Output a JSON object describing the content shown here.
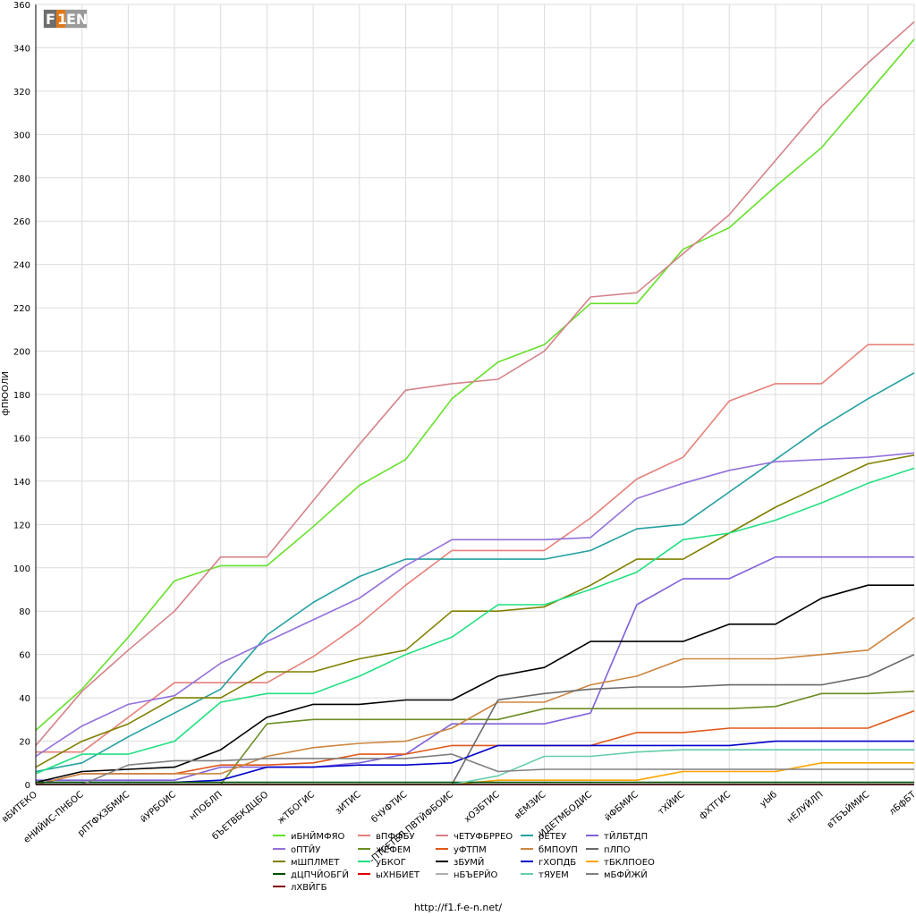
{
  "logo": {
    "text": "F1EN"
  },
  "footer": {
    "url": "http://f1.f-e-n.net/"
  },
  "chart_data": {
    "type": "line",
    "title": "",
    "xlabel": "",
    "ylabel": "фПЮОЛИ",
    "ylim": [
      0,
      360
    ],
    "ytick_step": 20,
    "grid": true,
    "legend_position": "bottom",
    "categories": [
      "вБИТЕКО",
      "еНИЙИС-ПНБОС",
      "рПТФХЗБМИС",
      "йУРБОИС",
      "нПОБЛП",
      "бЪЕТВБКДЦБО",
      "жТБОГИС",
      "зИТИС",
      "бЧУФТИС",
      "-ПТГЕТЕЛ ПВТЙФБОИС",
      "хОЗБТИС",
      "вЕМЗИС",
      "-ИДЕТМБОДИС",
      "йФБМИС",
      "тХЙИС",
      "фХТГИС",
      "уЫб",
      "нЕЛУЙЛП",
      "вТБЪЙМИС",
      "лБфБТ"
    ],
    "series": [
      {
        "name": "иБНЙМФЯО",
        "color": "#66e02a",
        "values": [
          25,
          44,
          68,
          94,
          101,
          101,
          119,
          138,
          150,
          178,
          195,
          203,
          222,
          222,
          247,
          257,
          276,
          294,
          319,
          344
        ]
      },
      {
        "name": "вПФФБУ",
        "color": "#e6807a",
        "values": [
          15,
          15,
          31,
          47,
          47,
          47,
          59,
          74,
          92,
          108,
          108,
          108,
          123,
          141,
          151,
          177,
          185,
          185,
          203,
          203
        ]
      },
      {
        "name": "чЕТУФБРРЕО",
        "color": "#d4828a",
        "values": [
          18,
          43,
          62,
          80,
          105,
          105,
          131,
          157,
          182,
          185,
          187,
          200,
          225,
          227,
          245,
          263,
          288,
          313,
          333,
          352
        ]
      },
      {
        "name": "рЕТЕУ",
        "color": "#24a0a0",
        "values": [
          6,
          10,
          22,
          33,
          44,
          69,
          84,
          96,
          104,
          104,
          104,
          104,
          108,
          118,
          120,
          135,
          150,
          165,
          178,
          190
        ]
      },
      {
        "name": "тЙЛБТДП",
        "color": "#8060d8",
        "values": [
          2,
          2,
          2,
          2,
          8,
          8,
          8,
          10,
          14,
          28,
          28,
          28,
          33,
          83,
          95,
          95,
          105,
          105,
          105,
          105
        ]
      },
      {
        "name": "оПТЙУ",
        "color": "#9370db",
        "values": [
          13,
          27,
          37,
          41,
          56,
          66,
          76,
          86,
          101,
          113,
          113,
          113,
          114,
          132,
          139,
          145,
          149,
          150,
          151,
          153
        ]
      },
      {
        "name": "жЕФЕМ",
        "color": "#6b8e23",
        "values": [
          0,
          0,
          0,
          0,
          0,
          28,
          30,
          30,
          30,
          30,
          30,
          35,
          35,
          35,
          35,
          35,
          36,
          42,
          42,
          43
        ]
      },
      {
        "name": "уФТПМ",
        "color": "#e05818",
        "values": [
          0,
          5,
          5,
          5,
          9,
          9,
          10,
          14,
          14,
          18,
          18,
          18,
          18,
          24,
          24,
          26,
          26,
          26,
          26,
          34
        ]
      },
      {
        "name": "бМПОУП",
        "color": "#cd853f",
        "values": [
          0,
          5,
          5,
          5,
          5,
          13,
          17,
          19,
          20,
          26,
          38,
          38,
          46,
          50,
          58,
          58,
          58,
          60,
          62,
          77
        ]
      },
      {
        "name": "пЛПО",
        "color": "#696969",
        "values": [
          0,
          0,
          0,
          0,
          0,
          0,
          0,
          0,
          0,
          0,
          39,
          42,
          44,
          45,
          45,
          46,
          46,
          46,
          50,
          60
        ]
      },
      {
        "name": "мШПЛМЕТ",
        "color": "#808000",
        "values": [
          8,
          20,
          28,
          40,
          40,
          52,
          52,
          58,
          62,
          80,
          80,
          82,
          92,
          104,
          104,
          116,
          128,
          138,
          148,
          152
        ]
      },
      {
        "name": "уБКОГ",
        "color": "#20e080",
        "values": [
          5,
          14,
          14,
          20,
          38,
          42,
          42,
          50,
          60,
          68,
          83,
          83,
          90,
          98,
          113,
          116,
          122,
          130,
          139,
          146
        ]
      },
      {
        "name": "зБУМЙ",
        "color": "#000000",
        "values": [
          1,
          6,
          7,
          8,
          16,
          31,
          37,
          37,
          39,
          39,
          50,
          54,
          66,
          66,
          66,
          74,
          74,
          86,
          92,
          92
        ]
      },
      {
        "name": "гХОПДБ",
        "color": "#0000cd",
        "values": [
          1,
          1,
          1,
          1,
          2,
          8,
          8,
          9,
          9,
          10,
          18,
          18,
          18,
          18,
          18,
          18,
          20,
          20,
          20,
          20
        ]
      },
      {
        "name": "тБКЛПОЕО",
        "color": "#ffa500",
        "values": [
          0,
          0,
          0,
          0,
          0,
          0,
          0,
          0,
          0,
          0,
          2,
          2,
          2,
          2,
          6,
          6,
          6,
          10,
          10,
          10
        ]
      },
      {
        "name": "дЦПЧЙОБГЙ",
        "color": "#005000",
        "values": [
          1,
          1,
          1,
          1,
          1,
          1,
          1,
          1,
          1,
          1,
          1,
          1,
          1,
          1,
          1,
          1,
          1,
          1,
          1,
          1
        ]
      },
      {
        "name": "ыХНБИЕТ",
        "color": "#e00000",
        "values": [
          0,
          0,
          0,
          0,
          0,
          0,
          0,
          0,
          0,
          0,
          0,
          0,
          0,
          0,
          0,
          0,
          0,
          0,
          0,
          0
        ]
      },
      {
        "name": "нБЪЕРЙО",
        "color": "#b0b0b0",
        "values": [
          0,
          0,
          0,
          0,
          0,
          0,
          0,
          0,
          0,
          0,
          0,
          0,
          0,
          0,
          0,
          0,
          0,
          0,
          0,
          0
        ]
      },
      {
        "name": "тЯУЕМ",
        "color": "#66cdaa",
        "values": [
          0,
          0,
          0,
          0,
          0,
          0,
          0,
          0,
          0,
          0,
          4,
          13,
          13,
          15,
          16,
          16,
          16,
          16,
          16,
          16
        ]
      },
      {
        "name": "мБФЙЖЙ",
        "color": "#808080",
        "values": [
          0,
          0,
          9,
          11,
          11,
          12,
          12,
          12,
          12,
          14,
          6,
          7,
          7,
          7,
          7,
          7,
          7,
          7,
          7,
          7
        ]
      },
      {
        "name": "лХВЙГБ",
        "color": "#800000",
        "values": [
          0,
          0,
          0,
          0,
          0,
          0,
          0,
          0,
          0,
          0,
          0,
          0,
          0,
          0,
          0,
          0,
          0,
          0,
          0,
          0
        ]
      }
    ]
  }
}
